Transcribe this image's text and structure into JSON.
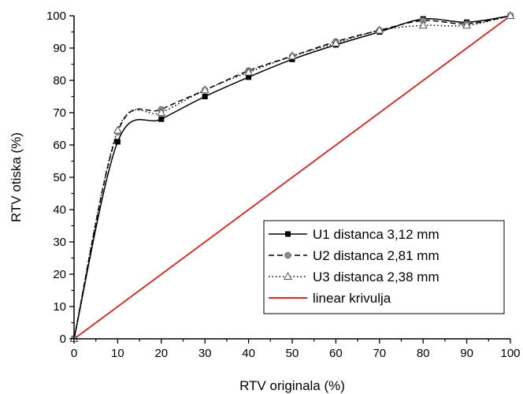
{
  "chart_data": {
    "type": "line",
    "title": "",
    "xlabel": "RTV originala (%)",
    "ylabel": "RTV otiska (%)",
    "xlim": [
      0,
      100
    ],
    "ylim": [
      0,
      100
    ],
    "x_ticks": [
      0,
      10,
      20,
      30,
      40,
      50,
      60,
      70,
      80,
      90,
      100
    ],
    "y_ticks": [
      0,
      10,
      20,
      30,
      40,
      50,
      60,
      70,
      80,
      90,
      100
    ],
    "grid": false,
    "legend_position": "bottom-right",
    "series": [
      {
        "name": "U1 distanca 3,12 mm",
        "x": [
          0,
          10,
          20,
          30,
          40,
          50,
          60,
          70,
          80,
          90,
          100
        ],
        "values": [
          0,
          61,
          68,
          75,
          81,
          86.5,
          91,
          95,
          99,
          98,
          100
        ],
        "color": "#000000",
        "line_style": "solid",
        "marker": "square"
      },
      {
        "name": "U2 distanca 2,81 mm",
        "x": [
          0,
          10,
          20,
          30,
          40,
          50,
          60,
          70,
          80,
          90,
          100
        ],
        "values": [
          0,
          64,
          71,
          77,
          83,
          87.5,
          92,
          95.5,
          98.5,
          97.5,
          100
        ],
        "color": "#000000",
        "line_style": "dashed",
        "marker": "circle"
      },
      {
        "name": "U3 distanca 2,38 mm",
        "x": [
          0,
          10,
          20,
          30,
          40,
          50,
          60,
          70,
          80,
          90,
          100
        ],
        "values": [
          0,
          64.5,
          70,
          77,
          82.5,
          87.5,
          91.5,
          95.5,
          97,
          97,
          100
        ],
        "color": "#000000",
        "line_style": "dotted",
        "marker": "triangle"
      },
      {
        "name": "linear krivulja",
        "x": [
          0,
          100
        ],
        "values": [
          0,
          100
        ],
        "color": "#ff0000",
        "line_style": "solid",
        "marker": "none"
      }
    ]
  }
}
